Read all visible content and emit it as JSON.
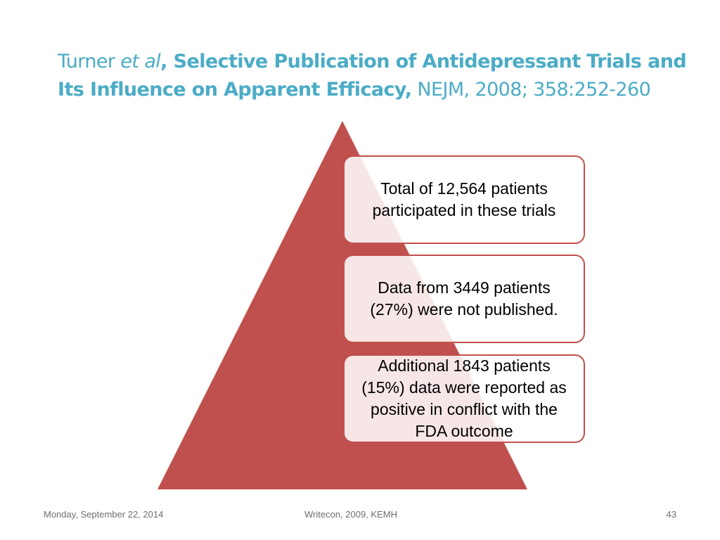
{
  "title": {
    "author": "Turner ",
    "etal": "et al",
    "sep": ", ",
    "paper_title": "Selective Publication of Antidepressant Trials and Its Influence on Apparent Efficacy,",
    "citation": " NEJM, 2008; 358:252-260"
  },
  "colors": {
    "title": "#4bacc6",
    "pyramid": "#c0504d",
    "box_border": "#c0504d"
  },
  "boxes": [
    {
      "text": "Total of 12,564 patients participated in these trials"
    },
    {
      "text": "Data from 3449 patients (27%) were not published."
    },
    {
      "text": "Additional 1843 patients (15%) data were reported as positive in conflict with the FDA outcome"
    }
  ],
  "footer": {
    "date": "Monday, September 22, 2014",
    "center": "Writecon, 2009, KEMH",
    "page": "43"
  }
}
